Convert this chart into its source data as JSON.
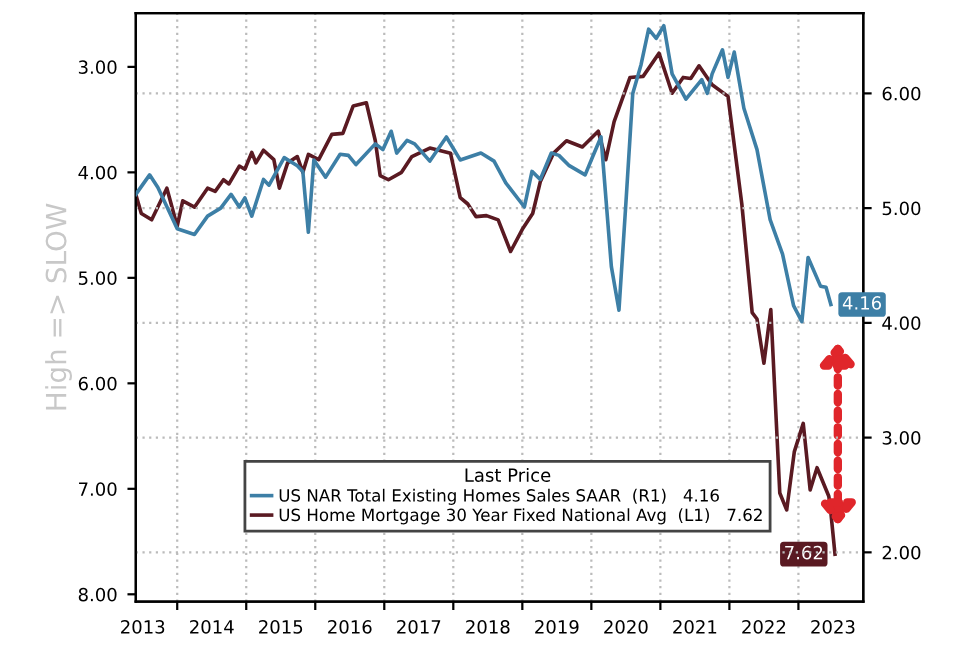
{
  "chart_data": {
    "type": "line",
    "ylabel": "High => SLOW",
    "legend_title": "Last Price",
    "legend": "bottom left",
    "grid": true,
    "xlim": [
      2013.4,
      2023.94
    ],
    "xticks": [
      {
        "value": 2014,
        "label": null
      },
      {
        "value": 2015,
        "label": null
      },
      {
        "value": 2016,
        "label": null
      },
      {
        "value": 2017,
        "label": null
      },
      {
        "value": 2018,
        "label": null
      },
      {
        "value": 2019,
        "label": null
      },
      {
        "value": 2020,
        "label": null
      },
      {
        "value": 2021,
        "label": null
      },
      {
        "value": 2022,
        "label": null
      },
      {
        "value": 2023,
        "label": null
      },
      {
        "value": 2013.5,
        "label": "2013"
      },
      {
        "value": 2014.5,
        "label": "2014"
      },
      {
        "value": 2015.5,
        "label": "2015"
      },
      {
        "value": 2016.5,
        "label": "2016"
      },
      {
        "value": 2017.5,
        "label": "2017"
      },
      {
        "value": 2018.5,
        "label": "2018"
      },
      {
        "value": 2019.5,
        "label": "2019"
      },
      {
        "value": 2020.5,
        "label": "2020"
      },
      {
        "value": 2021.5,
        "label": "2021"
      },
      {
        "value": 2022.5,
        "label": "2022"
      },
      {
        "value": 2023.5,
        "label": "2023"
      }
    ],
    "ylim": [
      8.07,
      2.49
    ],
    "yticks": [
      {
        "value": 3,
        "label": "3.00"
      },
      {
        "value": 4,
        "label": "4.00"
      },
      {
        "value": 5,
        "label": "5.00"
      },
      {
        "value": 6,
        "label": "6.00"
      },
      {
        "value": 7,
        "label": "7.00"
      },
      {
        "value": 8,
        "label": "8.00"
      }
    ],
    "y2lim": [
      1.57,
      6.7
    ],
    "y2ticks": [
      {
        "value": 2,
        "label": "2.00"
      },
      {
        "value": 3,
        "label": "3.00"
      },
      {
        "value": 4,
        "label": "4.00"
      },
      {
        "value": 5,
        "label": "5.00"
      },
      {
        "value": 6,
        "label": "6.00"
      }
    ],
    "series": [
      {
        "name": "US NAR Total Existing Homes Sales SAAR  (R1)   4.16",
        "color": "#3d7fa6",
        "axis": "y2",
        "x": [
          2013.4,
          2013.6,
          2013.72,
          2014.0,
          2014.25,
          2014.44,
          2014.63,
          2014.78,
          2014.9,
          2014.98,
          2015.08,
          2015.25,
          2015.33,
          2015.55,
          2015.74,
          2015.82,
          2015.9,
          2015.98,
          2016.15,
          2016.36,
          2016.48,
          2016.59,
          2016.87,
          2016.98,
          2017.1,
          2017.18,
          2017.33,
          2017.44,
          2017.66,
          2017.9,
          2018.1,
          2018.4,
          2018.59,
          2018.76,
          2019.03,
          2019.14,
          2019.26,
          2019.42,
          2019.53,
          2019.68,
          2019.91,
          2020.02,
          2020.14,
          2020.29,
          2020.4,
          2020.5,
          2020.6,
          2020.72,
          2020.83,
          2020.94,
          2021.05,
          2021.17,
          2021.37,
          2021.6,
          2021.68,
          2021.75,
          2021.9,
          2021.98,
          2022.07,
          2022.21,
          2022.4,
          2022.59,
          2022.77,
          2022.93,
          2023.05,
          2023.14,
          2023.32,
          2023.4,
          2023.47
        ],
        "values": [
          5.12,
          5.29,
          5.18,
          4.82,
          4.77,
          4.93,
          5.0,
          5.12,
          5.01,
          5.09,
          4.93,
          5.25,
          5.2,
          5.44,
          5.37,
          5.32,
          4.79,
          5.42,
          5.27,
          5.47,
          5.46,
          5.38,
          5.56,
          5.51,
          5.67,
          5.48,
          5.59,
          5.56,
          5.41,
          5.62,
          5.42,
          5.48,
          5.41,
          5.22,
          5.01,
          5.32,
          5.25,
          5.48,
          5.46,
          5.37,
          5.29,
          5.45,
          5.62,
          4.49,
          4.11,
          5.04,
          6.0,
          6.25,
          6.56,
          6.48,
          6.59,
          6.17,
          5.95,
          6.12,
          6.0,
          6.17,
          6.38,
          6.14,
          6.36,
          5.87,
          5.51,
          4.9,
          4.6,
          4.15,
          4.01,
          4.57,
          4.32,
          4.31,
          4.16
        ],
        "value_labels": [
          null,
          null,
          null,
          null,
          null,
          null,
          null,
          null,
          null,
          null,
          null,
          null,
          null,
          null,
          null,
          null,
          null,
          null,
          null,
          null,
          null,
          null,
          null,
          null,
          null,
          null,
          null,
          null,
          null,
          null,
          null,
          null,
          null,
          null,
          null,
          null,
          null,
          null,
          null,
          null,
          null,
          null,
          null,
          null,
          null,
          null,
          null,
          null,
          null,
          null,
          null,
          null,
          null,
          null,
          null,
          null,
          null,
          null,
          null,
          null,
          null,
          null,
          null,
          null,
          null,
          null,
          null,
          null,
          "4.16"
        ]
      },
      {
        "name": "US Home Mortgage 30 Year Fixed National Avg  (L1)   7.62",
        "color": "#5a1a22",
        "axis": "y",
        "x": [
          2013.4,
          2013.48,
          2013.63,
          2013.85,
          2014.0,
          2014.08,
          2014.25,
          2014.44,
          2014.55,
          2014.67,
          2014.75,
          2014.9,
          2014.98,
          2015.08,
          2015.14,
          2015.25,
          2015.4,
          2015.48,
          2015.6,
          2015.74,
          2015.82,
          2015.9,
          2016.05,
          2016.24,
          2016.4,
          2016.55,
          2016.74,
          2016.87,
          2016.94,
          2017.06,
          2017.25,
          2017.4,
          2017.66,
          2017.96,
          2018.1,
          2018.21,
          2018.33,
          2018.48,
          2018.65,
          2018.83,
          2019.0,
          2019.15,
          2019.26,
          2019.45,
          2019.64,
          2019.87,
          2020.1,
          2020.21,
          2020.33,
          2020.56,
          2020.75,
          2020.98,
          2021.17,
          2021.33,
          2021.44,
          2021.56,
          2021.75,
          2021.98,
          2022.18,
          2022.33,
          2022.4,
          2022.5,
          2022.6,
          2022.73,
          2022.83,
          2022.94,
          2023.07,
          2023.17,
          2023.27,
          2023.44,
          2023.46,
          2023.53
        ],
        "values": [
          4.21,
          4.39,
          4.45,
          4.15,
          4.51,
          4.27,
          4.33,
          4.15,
          4.18,
          4.07,
          4.11,
          3.94,
          3.97,
          3.81,
          3.91,
          3.79,
          3.88,
          4.15,
          3.91,
          3.85,
          4.0,
          3.83,
          3.88,
          3.64,
          3.63,
          3.37,
          3.34,
          3.7,
          4.03,
          4.07,
          4.0,
          3.85,
          3.77,
          3.82,
          4.24,
          4.3,
          4.42,
          4.41,
          4.45,
          4.75,
          4.54,
          4.39,
          4.09,
          3.82,
          3.7,
          3.76,
          3.61,
          3.88,
          3.52,
          3.1,
          3.09,
          2.87,
          3.25,
          3.1,
          3.11,
          2.99,
          3.17,
          3.28,
          4.3,
          5.33,
          5.39,
          5.81,
          5.3,
          7.04,
          7.2,
          6.65,
          6.38,
          7.01,
          6.8,
          7.07,
          7.16,
          7.62
        ],
        "value_labels": [
          null,
          null,
          null,
          null,
          null,
          null,
          null,
          null,
          null,
          null,
          null,
          null,
          null,
          null,
          null,
          null,
          null,
          null,
          null,
          null,
          null,
          null,
          null,
          null,
          null,
          null,
          null,
          null,
          null,
          null,
          null,
          null,
          null,
          null,
          null,
          null,
          null,
          null,
          null,
          null,
          null,
          null,
          null,
          null,
          null,
          null,
          null,
          null,
          null,
          null,
          null,
          null,
          null,
          null,
          null,
          null,
          null,
          null,
          null,
          null,
          null,
          null,
          null,
          null,
          null,
          null,
          null,
          null,
          null,
          null,
          null,
          "7.62"
        ]
      }
    ]
  }
}
